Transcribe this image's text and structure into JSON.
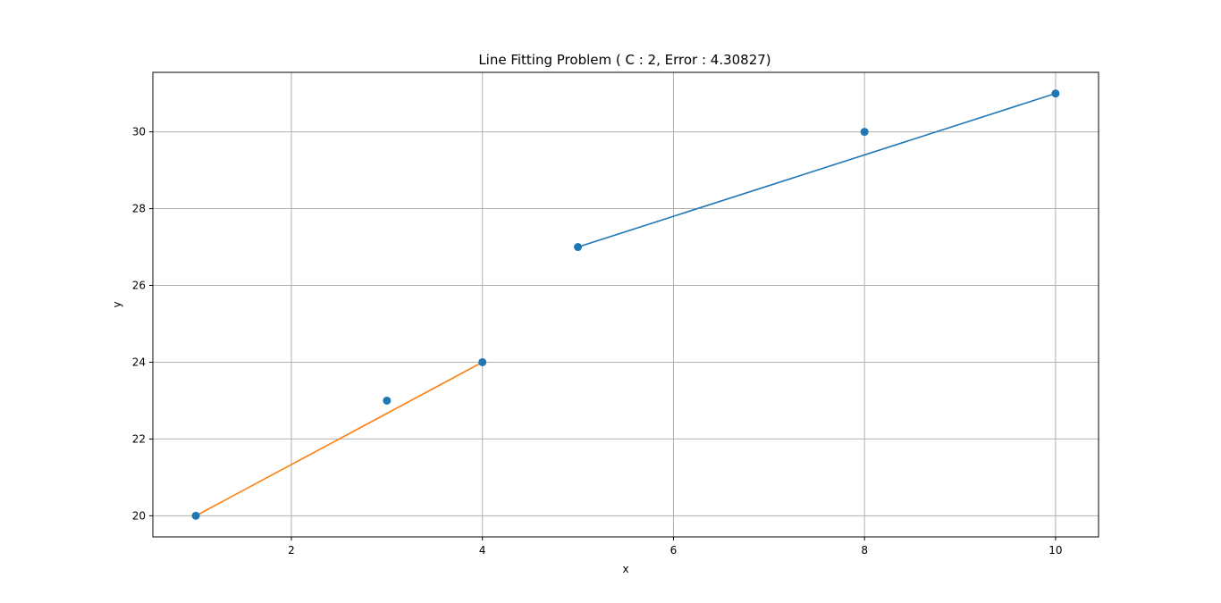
{
  "chart_data": {
    "type": "scatter",
    "title": "Line Fitting Problem  ( C : 2, Error : 4.30827)",
    "xlabel": "x",
    "ylabel": "y",
    "xlim": [
      0.55,
      10.45
    ],
    "ylim": [
      19.45,
      31.55
    ],
    "xticks": [
      2,
      4,
      6,
      8,
      10
    ],
    "yticks": [
      20,
      22,
      24,
      26,
      28,
      30
    ],
    "grid": true,
    "points": {
      "color": "#1f77b4",
      "x": [
        1,
        3,
        4,
        5,
        8,
        10
      ],
      "y": [
        20,
        23,
        24,
        27,
        30,
        31
      ]
    },
    "segments": [
      {
        "color": "#1f77b4",
        "x": [
          5,
          10
        ],
        "y": [
          27,
          31
        ]
      },
      {
        "color": "#ff7f0e",
        "x": [
          1,
          4
        ],
        "y": [
          20,
          24
        ]
      }
    ]
  }
}
